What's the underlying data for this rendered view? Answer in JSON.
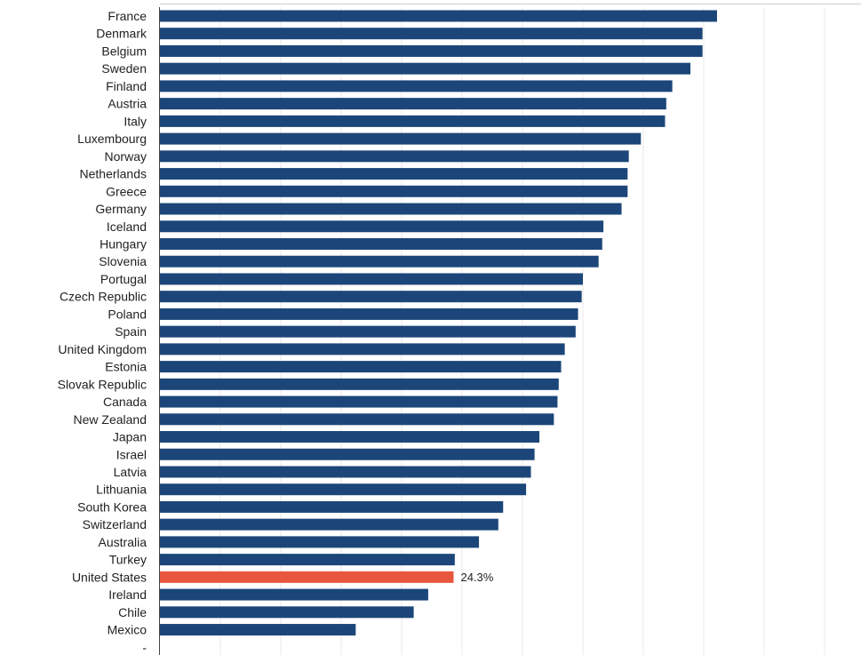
{
  "colors": {
    "bar": "#1c4679",
    "highlight": "#e8563f",
    "grid": "#e8e8e8",
    "axis": "#444444",
    "topline": "#cccccc"
  },
  "chart_data": {
    "type": "bar",
    "orientation": "horizontal",
    "title": "",
    "xlabel": "",
    "ylabel": "",
    "xlim": [
      0,
      58
    ],
    "grid": true,
    "highlight_category": "United States",
    "categories": [
      "France",
      "Denmark",
      "Belgium",
      "Sweden",
      "Finland",
      "Austria",
      "Italy",
      "Luxembourg",
      "Norway",
      "Netherlands",
      "Greece",
      "Germany",
      "Iceland",
      "Hungary",
      "Slovenia",
      "Portugal",
      "Czech Republic",
      "Poland",
      "Spain",
      "United Kingdom",
      "Estonia",
      "Slovak Republic",
      "Canada",
      "New Zealand",
      "Japan",
      "Israel",
      "Latvia",
      "Lithuania",
      "South Korea",
      "Switzerland",
      "Australia",
      "Turkey",
      "United States",
      "Ireland",
      "Chile",
      "Mexico",
      "-"
    ],
    "values": [
      46.1,
      44.9,
      44.9,
      43.9,
      42.4,
      41.9,
      41.8,
      39.8,
      38.8,
      38.7,
      38.7,
      38.2,
      36.7,
      36.6,
      36.3,
      35.0,
      34.9,
      34.6,
      34.4,
      33.5,
      33.2,
      33.0,
      32.9,
      32.6,
      31.4,
      31.0,
      30.7,
      30.3,
      28.4,
      28.0,
      26.4,
      24.4,
      24.3,
      22.2,
      21.0,
      16.2,
      null
    ],
    "data_labels": [
      {
        "category": "United States",
        "text": "24.3%"
      }
    ]
  }
}
